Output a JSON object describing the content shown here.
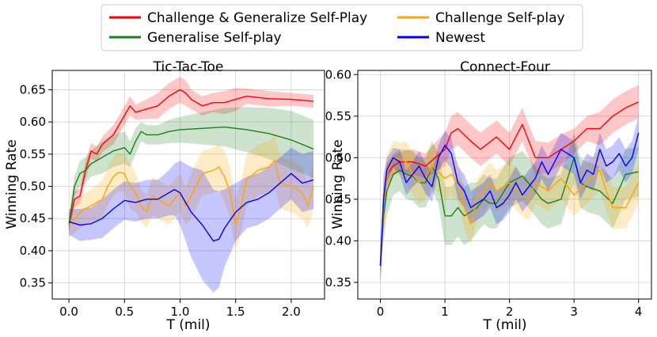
{
  "legend": [
    {
      "label": "Challenge & Generalize Self-Play",
      "color": "#ff0000"
    },
    {
      "label": "Generalise Self-play",
      "color": "#1a801a"
    },
    {
      "label": "Challenge Self-play",
      "color": "#ffa500"
    },
    {
      "label": "Newest",
      "color": "#0000ff"
    }
  ],
  "chart_data": [
    {
      "type": "line",
      "title": "Tic-Tac-Toe",
      "xlabel": "T (mil)",
      "ylabel": "Winning Rate",
      "xlim": [
        -0.15,
        2.3
      ],
      "ylim": [
        0.325,
        0.68
      ],
      "xticks": [
        0.0,
        0.5,
        1.0,
        1.5,
        2.0
      ],
      "xtick_labels": [
        "0.0",
        "0.5",
        "1.0",
        "1.5",
        "2.0"
      ],
      "yticks": [
        0.35,
        0.4,
        0.45,
        0.5,
        0.55,
        0.6,
        0.65
      ],
      "ytick_labels": [
        "0.35",
        "0.40",
        "0.45",
        "0.50",
        "0.55",
        "0.60",
        "0.65"
      ],
      "grid": true,
      "series": [
        {
          "name": "Challenge & Generalize Self-Play",
          "color": "#ff0000",
          "x": [
            0,
            0.05,
            0.1,
            0.15,
            0.2,
            0.25,
            0.3,
            0.4,
            0.5,
            0.55,
            0.6,
            0.7,
            0.8,
            0.9,
            1.0,
            1.05,
            1.1,
            1.2,
            1.3,
            1.4,
            1.5,
            1.6,
            1.8,
            2.0,
            2.2
          ],
          "y": [
            0.44,
            0.48,
            0.485,
            0.525,
            0.555,
            0.55,
            0.565,
            0.58,
            0.61,
            0.625,
            0.615,
            0.62,
            0.625,
            0.64,
            0.65,
            0.645,
            0.635,
            0.625,
            0.63,
            0.63,
            0.635,
            0.64,
            0.636,
            0.635,
            0.632
          ],
          "band": [
            0.01,
            0.012,
            0.012,
            0.015,
            0.012,
            0.012,
            0.012,
            0.015,
            0.015,
            0.015,
            0.012,
            0.015,
            0.02,
            0.02,
            0.02,
            0.02,
            0.015,
            0.015,
            0.015,
            0.018,
            0.018,
            0.012,
            0.012,
            0.01,
            0.01
          ]
        },
        {
          "name": "Generalise Self-play",
          "color": "#1a801a",
          "x": [
            0,
            0.05,
            0.1,
            0.15,
            0.2,
            0.3,
            0.4,
            0.5,
            0.55,
            0.6,
            0.65,
            0.7,
            0.8,
            0.9,
            1.0,
            1.2,
            1.4,
            1.6,
            1.8,
            2.0,
            2.2
          ],
          "y": [
            0.44,
            0.5,
            0.52,
            0.525,
            0.535,
            0.545,
            0.555,
            0.56,
            0.55,
            0.57,
            0.585,
            0.58,
            0.58,
            0.585,
            0.588,
            0.59,
            0.592,
            0.588,
            0.582,
            0.572,
            0.558
          ],
          "band": [
            0.015,
            0.015,
            0.02,
            0.02,
            0.02,
            0.025,
            0.025,
            0.025,
            0.02,
            0.02,
            0.015,
            0.015,
            0.015,
            0.018,
            0.02,
            0.025,
            0.03,
            0.035,
            0.04,
            0.045,
            0.045
          ]
        },
        {
          "name": "Challenge Self-play",
          "color": "#ffa500",
          "x": [
            0,
            0.1,
            0.2,
            0.3,
            0.35,
            0.4,
            0.45,
            0.5,
            0.55,
            0.6,
            0.65,
            0.7,
            0.75,
            0.8,
            0.9,
            1.0,
            1.05,
            1.1,
            1.2,
            1.3,
            1.35,
            1.4,
            1.45,
            1.5,
            1.55,
            1.6,
            1.7,
            1.8,
            1.85,
            1.9,
            2.0,
            2.1,
            2.15,
            2.2
          ],
          "y": [
            0.44,
            0.46,
            0.47,
            0.48,
            0.5,
            0.515,
            0.522,
            0.52,
            0.5,
            0.49,
            0.47,
            0.46,
            0.485,
            0.48,
            0.47,
            0.49,
            0.47,
            0.485,
            0.52,
            0.525,
            0.53,
            0.515,
            0.49,
            0.44,
            0.47,
            0.51,
            0.525,
            0.53,
            0.54,
            0.505,
            0.5,
            0.49,
            0.47,
            0.5
          ],
          "band": [
            0.02,
            0.025,
            0.025,
            0.03,
            0.03,
            0.03,
            0.03,
            0.03,
            0.035,
            0.03,
            0.025,
            0.025,
            0.03,
            0.03,
            0.03,
            0.03,
            0.03,
            0.035,
            0.035,
            0.035,
            0.035,
            0.04,
            0.04,
            0.04,
            0.04,
            0.04,
            0.04,
            0.04,
            0.04,
            0.04,
            0.04,
            0.04,
            0.035,
            0.035
          ]
        },
        {
          "name": "Newest",
          "color": "#0000ff",
          "x": [
            0,
            0.1,
            0.2,
            0.3,
            0.4,
            0.5,
            0.6,
            0.7,
            0.8,
            0.9,
            0.95,
            1.0,
            1.1,
            1.2,
            1.3,
            1.35,
            1.4,
            1.5,
            1.6,
            1.7,
            1.8,
            1.9,
            2.0,
            2.1,
            2.2
          ],
          "y": [
            0.445,
            0.44,
            0.442,
            0.45,
            0.465,
            0.478,
            0.475,
            0.48,
            0.48,
            0.49,
            0.495,
            0.49,
            0.46,
            0.44,
            0.415,
            0.418,
            0.435,
            0.46,
            0.475,
            0.48,
            0.49,
            0.505,
            0.52,
            0.505,
            0.51
          ],
          "band": [
            0.02,
            0.025,
            0.025,
            0.03,
            0.03,
            0.03,
            0.03,
            0.03,
            0.03,
            0.035,
            0.04,
            0.05,
            0.07,
            0.085,
            0.08,
            0.075,
            0.06,
            0.045,
            0.04,
            0.04,
            0.04,
            0.04,
            0.04,
            0.045,
            0.045
          ]
        }
      ]
    },
    {
      "type": "line",
      "title": "Connect-Four",
      "xlabel": "T (mil)",
      "ylabel": "Winning Rate",
      "xlim": [
        -0.35,
        4.2
      ],
      "ylim": [
        0.33,
        0.605
      ],
      "xticks": [
        0,
        1,
        2,
        3,
        4
      ],
      "xtick_labels": [
        "0",
        "1",
        "2",
        "3",
        "4"
      ],
      "yticks": [
        0.35,
        0.4,
        0.45,
        0.5,
        0.55,
        0.6
      ],
      "ytick_labels": [
        "0.35",
        "0.40",
        "0.45",
        "0.50",
        "0.55",
        "0.60"
      ],
      "grid": true,
      "series": [
        {
          "name": "Challenge & Generalize Self-Play",
          "color": "#ff0000",
          "x": [
            0,
            0.05,
            0.1,
            0.2,
            0.3,
            0.5,
            0.7,
            0.85,
            1.0,
            1.1,
            1.2,
            1.4,
            1.55,
            1.8,
            2.0,
            2.2,
            2.4,
            2.6,
            2.8,
            3.0,
            3.2,
            3.4,
            3.6,
            3.8,
            4.0
          ],
          "y": [
            0.37,
            0.44,
            0.48,
            0.49,
            0.495,
            0.495,
            0.49,
            0.5,
            0.51,
            0.53,
            0.535,
            0.52,
            0.51,
            0.525,
            0.51,
            0.54,
            0.5,
            0.5,
            0.51,
            0.52,
            0.535,
            0.535,
            0.55,
            0.56,
            0.567
          ],
          "band": [
            0.02,
            0.025,
            0.015,
            0.012,
            0.012,
            0.015,
            0.015,
            0.018,
            0.02,
            0.02,
            0.02,
            0.02,
            0.02,
            0.02,
            0.02,
            0.02,
            0.02,
            0.018,
            0.018,
            0.015,
            0.015,
            0.02,
            0.02,
            0.02,
            0.02
          ]
        },
        {
          "name": "Generalise Self-play",
          "color": "#1a801a",
          "x": [
            0,
            0.05,
            0.1,
            0.2,
            0.3,
            0.4,
            0.5,
            0.6,
            0.7,
            0.8,
            0.9,
            1.0,
            1.1,
            1.2,
            1.3,
            1.4,
            1.5,
            1.6,
            1.7,
            1.8,
            2.0,
            2.2,
            2.4,
            2.5,
            2.6,
            2.8,
            3.0,
            3.1,
            3.2,
            3.4,
            3.6,
            3.8,
            4.0
          ],
          "y": [
            0.37,
            0.43,
            0.46,
            0.48,
            0.485,
            0.48,
            0.478,
            0.47,
            0.47,
            0.49,
            0.475,
            0.43,
            0.43,
            0.44,
            0.43,
            0.435,
            0.44,
            0.45,
            0.445,
            0.445,
            0.47,
            0.478,
            0.46,
            0.45,
            0.445,
            0.45,
            0.5,
            0.47,
            0.465,
            0.46,
            0.445,
            0.48,
            0.483
          ],
          "band": [
            0.02,
            0.03,
            0.03,
            0.025,
            0.025,
            0.03,
            0.03,
            0.03,
            0.03,
            0.03,
            0.03,
            0.035,
            0.035,
            0.035,
            0.035,
            0.035,
            0.03,
            0.03,
            0.03,
            0.03,
            0.03,
            0.03,
            0.03,
            0.03,
            0.03,
            0.03,
            0.03,
            0.03,
            0.03,
            0.03,
            0.03,
            0.03,
            0.03
          ]
        },
        {
          "name": "Challenge Self-play",
          "color": "#ffa500",
          "x": [
            0,
            0.05,
            0.1,
            0.2,
            0.3,
            0.4,
            0.5,
            0.6,
            0.7,
            0.8,
            1.0,
            1.1,
            1.2,
            1.3,
            1.4,
            1.5,
            1.6,
            1.7,
            1.8,
            2.0,
            2.2,
            2.3,
            2.4,
            2.6,
            2.8,
            3.0,
            3.2,
            3.4,
            3.5,
            3.6,
            3.8,
            4.0
          ],
          "y": [
            0.37,
            0.44,
            0.48,
            0.5,
            0.498,
            0.495,
            0.48,
            0.47,
            0.475,
            0.49,
            0.475,
            0.48,
            0.47,
            0.44,
            0.42,
            0.45,
            0.46,
            0.47,
            0.46,
            0.47,
            0.455,
            0.45,
            0.47,
            0.46,
            0.475,
            0.455,
            0.47,
            0.485,
            0.46,
            0.44,
            0.44,
            0.47
          ],
          "band": [
            0.02,
            0.03,
            0.025,
            0.02,
            0.02,
            0.025,
            0.025,
            0.025,
            0.025,
            0.025,
            0.025,
            0.025,
            0.025,
            0.025,
            0.025,
            0.025,
            0.025,
            0.025,
            0.025,
            0.025,
            0.025,
            0.025,
            0.025,
            0.025,
            0.025,
            0.025,
            0.025,
            0.025,
            0.025,
            0.025,
            0.025,
            0.025
          ]
        },
        {
          "name": "Newest",
          "color": "#0000ff",
          "x": [
            0,
            0.05,
            0.1,
            0.2,
            0.3,
            0.4,
            0.5,
            0.6,
            0.7,
            0.8,
            0.9,
            1.0,
            1.1,
            1.2,
            1.3,
            1.4,
            1.5,
            1.6,
            1.7,
            1.8,
            1.9,
            2.0,
            2.1,
            2.2,
            2.4,
            2.5,
            2.6,
            2.8,
            3.0,
            3.1,
            3.2,
            3.3,
            3.4,
            3.5,
            3.6,
            3.7,
            3.8,
            3.9,
            4.0
          ],
          "y": [
            0.37,
            0.45,
            0.485,
            0.5,
            0.495,
            0.47,
            0.48,
            0.49,
            0.475,
            0.465,
            0.5,
            0.515,
            0.505,
            0.47,
            0.46,
            0.44,
            0.445,
            0.45,
            0.46,
            0.44,
            0.445,
            0.455,
            0.47,
            0.455,
            0.475,
            0.495,
            0.48,
            0.51,
            0.5,
            0.47,
            0.485,
            0.48,
            0.51,
            0.49,
            0.495,
            0.505,
            0.49,
            0.5,
            0.53
          ],
          "band": [
            0.02,
            0.03,
            0.015,
            0.012,
            0.015,
            0.015,
            0.015,
            0.018,
            0.018,
            0.018,
            0.015,
            0.018,
            0.018,
            0.02,
            0.02,
            0.02,
            0.02,
            0.02,
            0.02,
            0.02,
            0.02,
            0.02,
            0.02,
            0.02,
            0.02,
            0.02,
            0.02,
            0.02,
            0.02,
            0.02,
            0.02,
            0.02,
            0.02,
            0.02,
            0.02,
            0.02,
            0.02,
            0.02,
            0.02
          ]
        }
      ]
    }
  ]
}
